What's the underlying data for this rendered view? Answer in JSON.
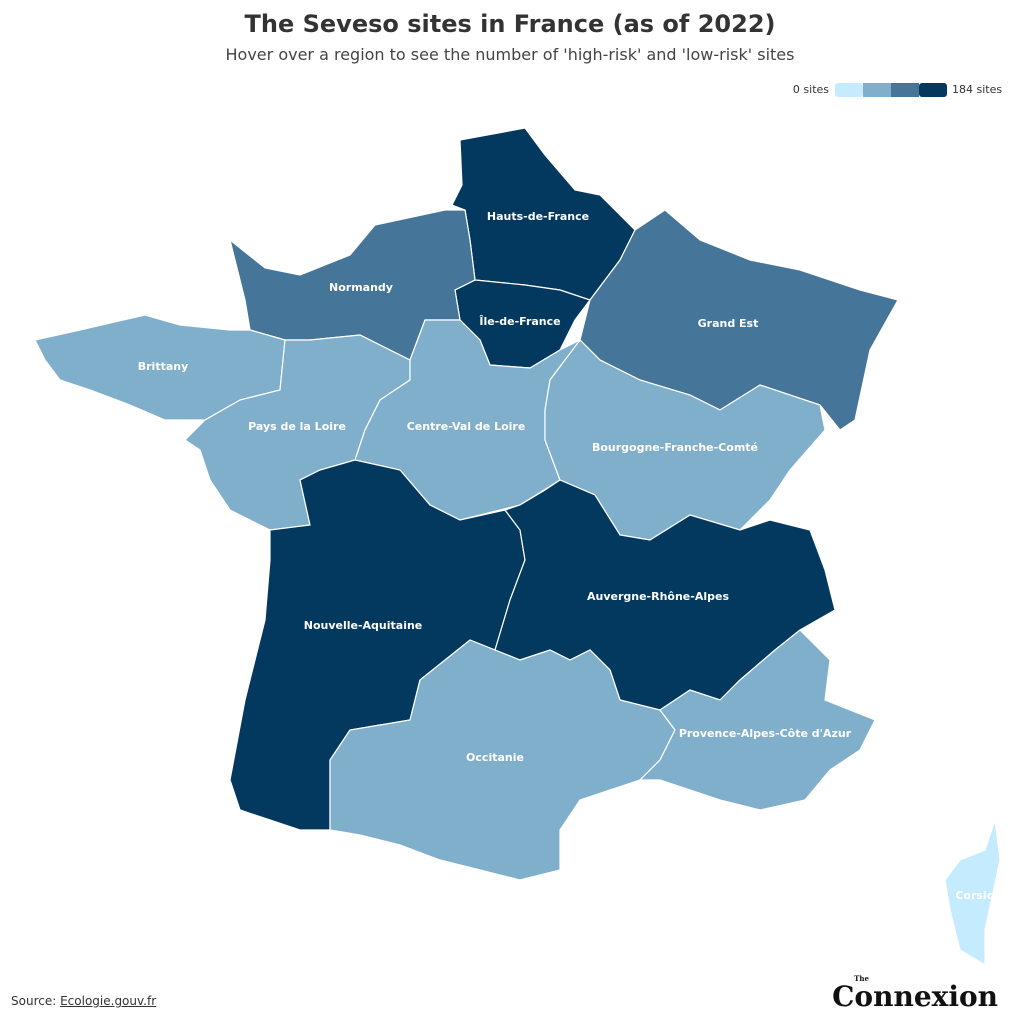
{
  "header": {
    "title": "The Seveso sites in France (as of 2022)",
    "subtitle": "Hover over a region to see the number of 'high-risk' and 'low-risk' sites"
  },
  "legend": {
    "min_label": "0 sites",
    "max_label": "184 sites",
    "colors": [
      "#c4ebff",
      "#80afcc",
      "#457598",
      "#03395f"
    ]
  },
  "regions": [
    {
      "name": "Hauts-de-France",
      "color": "#03395f"
    },
    {
      "name": "Île-de-France",
      "color": "#03395f"
    },
    {
      "name": "Normandy",
      "color": "#457598"
    },
    {
      "name": "Grand Est",
      "color": "#457598"
    },
    {
      "name": "Brittany",
      "color": "#80afcc"
    },
    {
      "name": "Pays de la Loire",
      "color": "#80afcc"
    },
    {
      "name": "Centre-Val de Loire",
      "color": "#80afcc"
    },
    {
      "name": "Bourgogne-Franche-Comté",
      "color": "#80afcc"
    },
    {
      "name": "Nouvelle-Aquitaine",
      "color": "#03395f"
    },
    {
      "name": "Auvergne-Rhône-Alpes",
      "color": "#03395f"
    },
    {
      "name": "Occitanie",
      "color": "#80afcc"
    },
    {
      "name": "Provence-Alpes-Côte d'Azur",
      "color": "#80afcc"
    },
    {
      "name": "Corsica",
      "color": "#c4ebff"
    }
  ],
  "footer": {
    "source_prefix": "Source:",
    "source_link": "Ecologie.gouv.fr",
    "logo_small": "The",
    "logo": "Connexion"
  }
}
